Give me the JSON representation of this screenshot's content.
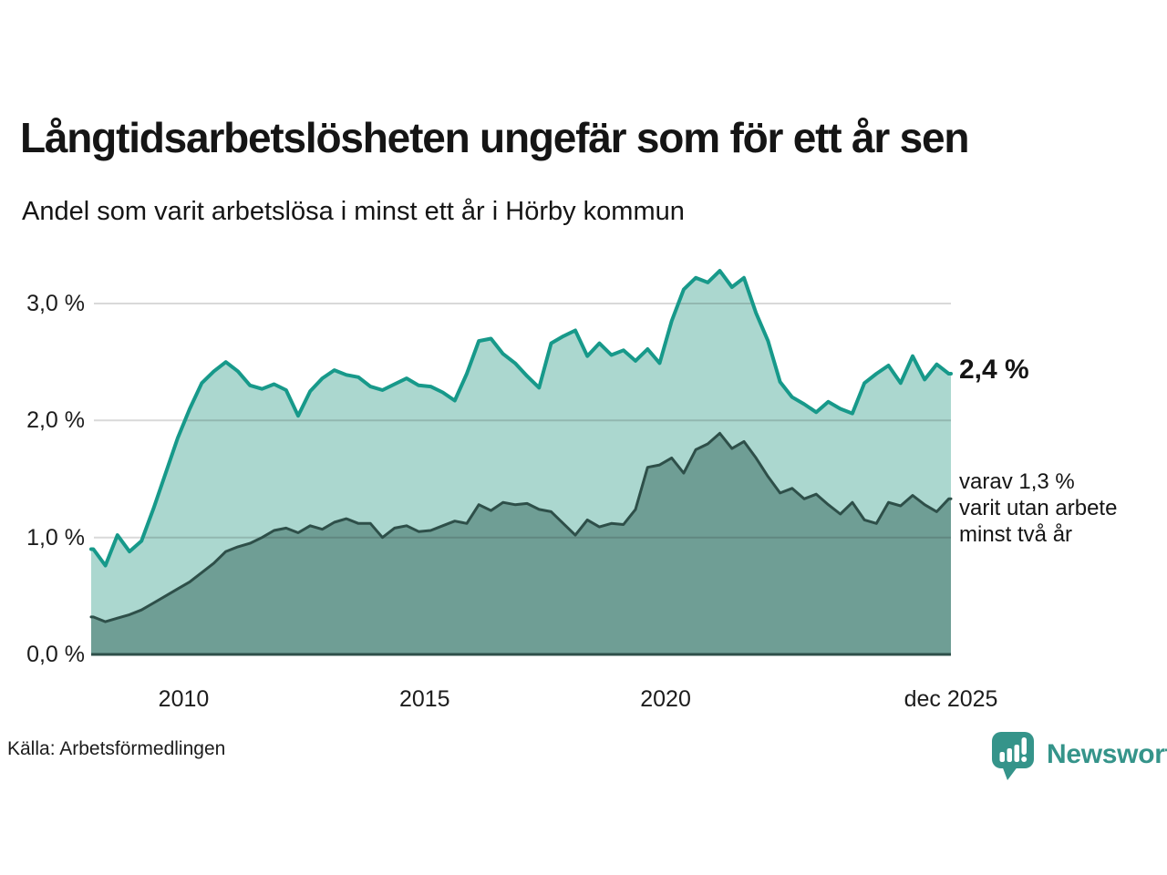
{
  "header": {
    "title": "Långtidsarbetslösheten ungefär som för ett år sen",
    "subtitle": "Andel som varit arbetslösa i minst ett år i Hörby kommun"
  },
  "annotations": {
    "latest_total": "2,4 %",
    "subseries_line1": "varav 1,3 %",
    "subseries_line2": "varit utan arbete",
    "subseries_line3": "minst två år"
  },
  "footer": {
    "source": "Källa: Arbetsförmedlingen",
    "logo_text": "Newsworthy"
  },
  "colors": {
    "series_total_line": "#17998a",
    "series_total_fill": "#abd7cf",
    "series_2yr_line": "#2e4f49",
    "series_2yr_fill": "#6f9e95",
    "gridline": "rgba(17,17,17,0.16)",
    "text": "#151515",
    "logo_teal": "#35948a"
  },
  "chart_data": {
    "type": "area",
    "unit": "%",
    "grid": "horizontal",
    "x_range": [
      2008.08,
      2025.92
    ],
    "y_range": [
      0,
      3.335
    ],
    "x_ticks": [
      {
        "label": "2010",
        "t": 2010.0
      },
      {
        "label": "2015",
        "t": 2015.0
      },
      {
        "label": "2020",
        "t": 2020.0
      },
      {
        "label": "dec 2025",
        "t": 2025.92
      }
    ],
    "y_ticks": [
      {
        "label": "0,0 %",
        "v": 0.0
      },
      {
        "label": "1,0 %",
        "v": 1.0
      },
      {
        "label": "2,0 %",
        "v": 2.0
      },
      {
        "label": "3,0 %",
        "v": 3.0
      }
    ],
    "x": [
      2008.125,
      2008.375,
      2008.625,
      2008.875,
      2009.125,
      2009.375,
      2009.625,
      2009.875,
      2010.125,
      2010.375,
      2010.625,
      2010.875,
      2011.125,
      2011.375,
      2011.625,
      2011.875,
      2012.125,
      2012.375,
      2012.625,
      2012.875,
      2013.125,
      2013.375,
      2013.625,
      2013.875,
      2014.125,
      2014.375,
      2014.625,
      2014.875,
      2015.125,
      2015.375,
      2015.625,
      2015.875,
      2016.125,
      2016.375,
      2016.625,
      2016.875,
      2017.125,
      2017.375,
      2017.625,
      2017.875,
      2018.125,
      2018.375,
      2018.625,
      2018.875,
      2019.125,
      2019.375,
      2019.625,
      2019.875,
      2020.125,
      2020.375,
      2020.625,
      2020.875,
      2021.125,
      2021.375,
      2021.625,
      2021.875,
      2022.125,
      2022.375,
      2022.625,
      2022.875,
      2023.125,
      2023.375,
      2023.625,
      2023.875,
      2024.125,
      2024.375,
      2024.625,
      2024.875,
      2025.125,
      2025.375,
      2025.625,
      2025.875
    ],
    "series": [
      {
        "name": "Arbetslösa minst ett år",
        "end_value": 2.4,
        "values": [
          0.9,
          0.76,
          1.02,
          0.88,
          0.97,
          1.25,
          1.55,
          1.85,
          2.1,
          2.32,
          2.42,
          2.5,
          2.42,
          2.3,
          2.27,
          2.31,
          2.26,
          2.04,
          2.25,
          2.36,
          2.43,
          2.39,
          2.37,
          2.29,
          2.26,
          2.31,
          2.36,
          2.3,
          2.29,
          2.24,
          2.17,
          2.4,
          2.68,
          2.7,
          2.57,
          2.49,
          2.38,
          2.28,
          2.66,
          2.72,
          2.77,
          2.55,
          2.66,
          2.56,
          2.6,
          2.51,
          2.61,
          2.49,
          2.85,
          3.12,
          3.22,
          3.18,
          3.28,
          3.14,
          3.22,
          2.92,
          2.68,
          2.33,
          2.2,
          2.14,
          2.07,
          2.16,
          2.1,
          2.06,
          2.32,
          2.4,
          2.47,
          2.32,
          2.55,
          2.35,
          2.48,
          2.4
        ]
      },
      {
        "name": "Utan arbete minst två år",
        "end_value": 1.3,
        "values": [
          0.32,
          0.28,
          0.31,
          0.34,
          0.38,
          0.44,
          0.5,
          0.56,
          0.62,
          0.7,
          0.78,
          0.88,
          0.92,
          0.95,
          1.0,
          1.06,
          1.08,
          1.04,
          1.1,
          1.07,
          1.13,
          1.16,
          1.12,
          1.12,
          1.0,
          1.08,
          1.1,
          1.05,
          1.06,
          1.1,
          1.14,
          1.12,
          1.28,
          1.23,
          1.3,
          1.28,
          1.29,
          1.24,
          1.22,
          1.12,
          1.02,
          1.15,
          1.09,
          1.12,
          1.11,
          1.24,
          1.6,
          1.62,
          1.68,
          1.55,
          1.75,
          1.8,
          1.89,
          1.76,
          1.82,
          1.68,
          1.52,
          1.38,
          1.42,
          1.33,
          1.37,
          1.28,
          1.2,
          1.3,
          1.15,
          1.12,
          1.3,
          1.27,
          1.36,
          1.28,
          1.22,
          1.33
        ]
      }
    ],
    "latest_values": {
      "total_one_year": 2.4,
      "at_least_two_years": 1.3
    }
  }
}
